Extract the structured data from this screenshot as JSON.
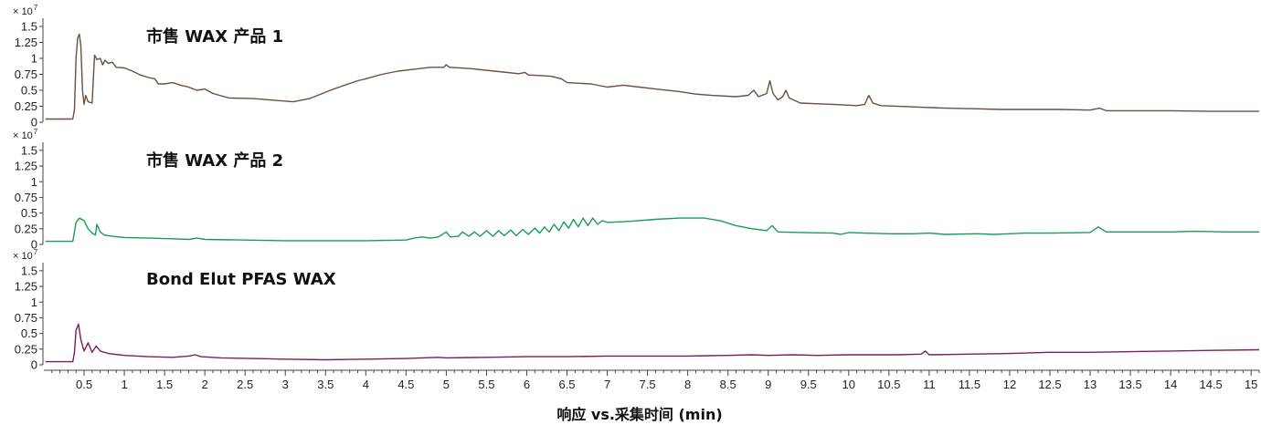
{
  "chart_data": {
    "type": "line",
    "xlabel": "响应 vs.采集时间 (min)",
    "xlim": [
      0,
      15.1
    ],
    "x_ticks": [
      "0.5",
      "1",
      "1.5",
      "2",
      "2.5",
      "3",
      "3.5",
      "4",
      "4.5",
      "5",
      "5.5",
      "6",
      "6.5",
      "7",
      "7.5",
      "8",
      "8.5",
      "9",
      "9.5",
      "10",
      "10.5",
      "11",
      "11.5",
      "12",
      "12.5",
      "13",
      "13.5",
      "14",
      "14.5",
      "15"
    ],
    "y_ticks": [
      "0",
      "0.25",
      "0.5",
      "0.75",
      "1",
      "1.25",
      "1.5"
    ],
    "y_multiplier": "× 10",
    "y_exponent": "7",
    "ylim": [
      0,
      1.6
    ],
    "panels": [
      {
        "title": "市售 WAX 产品 1",
        "color": "#6b4f3f",
        "points": [
          [
            0.02,
            0.05
          ],
          [
            0.36,
            0.05
          ],
          [
            0.38,
            0.2
          ],
          [
            0.4,
            1.0
          ],
          [
            0.42,
            1.32
          ],
          [
            0.44,
            1.38
          ],
          [
            0.46,
            1.2
          ],
          [
            0.48,
            0.5
          ],
          [
            0.5,
            0.28
          ],
          [
            0.52,
            0.42
          ],
          [
            0.55,
            0.32
          ],
          [
            0.6,
            0.3
          ],
          [
            0.63,
            1.05
          ],
          [
            0.66,
            0.98
          ],
          [
            0.7,
            1.0
          ],
          [
            0.73,
            0.9
          ],
          [
            0.76,
            0.97
          ],
          [
            0.8,
            0.92
          ],
          [
            0.85,
            0.94
          ],
          [
            0.9,
            0.86
          ],
          [
            1.0,
            0.85
          ],
          [
            1.1,
            0.8
          ],
          [
            1.2,
            0.74
          ],
          [
            1.3,
            0.7
          ],
          [
            1.38,
            0.68
          ],
          [
            1.42,
            0.6
          ],
          [
            1.5,
            0.6
          ],
          [
            1.6,
            0.62
          ],
          [
            1.7,
            0.58
          ],
          [
            1.8,
            0.55
          ],
          [
            1.9,
            0.5
          ],
          [
            2.0,
            0.52
          ],
          [
            2.1,
            0.45
          ],
          [
            2.3,
            0.38
          ],
          [
            2.6,
            0.37
          ],
          [
            2.9,
            0.34
          ],
          [
            3.1,
            0.32
          ],
          [
            3.3,
            0.37
          ],
          [
            3.6,
            0.52
          ],
          [
            3.9,
            0.65
          ],
          [
            4.0,
            0.68
          ],
          [
            4.2,
            0.75
          ],
          [
            4.4,
            0.8
          ],
          [
            4.6,
            0.83
          ],
          [
            4.8,
            0.86
          ],
          [
            4.97,
            0.86
          ],
          [
            5.0,
            0.9
          ],
          [
            5.04,
            0.86
          ],
          [
            5.3,
            0.84
          ],
          [
            5.6,
            0.8
          ],
          [
            5.9,
            0.76
          ],
          [
            5.98,
            0.78
          ],
          [
            6.02,
            0.74
          ],
          [
            6.3,
            0.72
          ],
          [
            6.43,
            0.68
          ],
          [
            6.5,
            0.62
          ],
          [
            6.8,
            0.6
          ],
          [
            7.0,
            0.55
          ],
          [
            7.2,
            0.58
          ],
          [
            7.4,
            0.55
          ],
          [
            7.6,
            0.52
          ],
          [
            7.9,
            0.48
          ],
          [
            8.1,
            0.44
          ],
          [
            8.3,
            0.42
          ],
          [
            8.6,
            0.4
          ],
          [
            8.75,
            0.42
          ],
          [
            8.82,
            0.5
          ],
          [
            8.88,
            0.4
          ],
          [
            8.98,
            0.45
          ],
          [
            9.02,
            0.65
          ],
          [
            9.06,
            0.45
          ],
          [
            9.12,
            0.35
          ],
          [
            9.18,
            0.4
          ],
          [
            9.22,
            0.5
          ],
          [
            9.26,
            0.38
          ],
          [
            9.4,
            0.3
          ],
          [
            9.8,
            0.28
          ],
          [
            10.1,
            0.26
          ],
          [
            10.2,
            0.28
          ],
          [
            10.25,
            0.42
          ],
          [
            10.3,
            0.3
          ],
          [
            10.4,
            0.26
          ],
          [
            10.8,
            0.24
          ],
          [
            11.2,
            0.22
          ],
          [
            11.6,
            0.21
          ],
          [
            11.9,
            0.2
          ],
          [
            12.2,
            0.2
          ],
          [
            12.6,
            0.2
          ],
          [
            13.0,
            0.19
          ],
          [
            13.12,
            0.22
          ],
          [
            13.2,
            0.18
          ],
          [
            13.6,
            0.18
          ],
          [
            14.0,
            0.18
          ],
          [
            14.5,
            0.17
          ],
          [
            15.1,
            0.17
          ]
        ]
      },
      {
        "title": "市售 WAX 产品 2",
        "color": "#1a9c57",
        "points": [
          [
            0.02,
            0.05
          ],
          [
            0.36,
            0.05
          ],
          [
            0.38,
            0.2
          ],
          [
            0.4,
            0.35
          ],
          [
            0.44,
            0.42
          ],
          [
            0.5,
            0.38
          ],
          [
            0.55,
            0.25
          ],
          [
            0.6,
            0.18
          ],
          [
            0.64,
            0.15
          ],
          [
            0.66,
            0.32
          ],
          [
            0.7,
            0.2
          ],
          [
            0.75,
            0.15
          ],
          [
            0.85,
            0.13
          ],
          [
            1.0,
            0.11
          ],
          [
            1.3,
            0.1
          ],
          [
            1.6,
            0.09
          ],
          [
            1.8,
            0.08
          ],
          [
            1.9,
            0.1
          ],
          [
            2.0,
            0.08
          ],
          [
            2.5,
            0.07
          ],
          [
            3.0,
            0.06
          ],
          [
            3.5,
            0.06
          ],
          [
            4.0,
            0.06
          ],
          [
            4.5,
            0.07
          ],
          [
            4.6,
            0.1
          ],
          [
            4.7,
            0.12
          ],
          [
            4.8,
            0.1
          ],
          [
            4.9,
            0.12
          ],
          [
            5.0,
            0.2
          ],
          [
            5.05,
            0.12
          ],
          [
            5.15,
            0.13
          ],
          [
            5.2,
            0.2
          ],
          [
            5.28,
            0.13
          ],
          [
            5.35,
            0.2
          ],
          [
            5.42,
            0.13
          ],
          [
            5.5,
            0.22
          ],
          [
            5.58,
            0.13
          ],
          [
            5.65,
            0.22
          ],
          [
            5.72,
            0.14
          ],
          [
            5.8,
            0.23
          ],
          [
            5.87,
            0.14
          ],
          [
            5.95,
            0.24
          ],
          [
            6.02,
            0.16
          ],
          [
            6.1,
            0.26
          ],
          [
            6.16,
            0.18
          ],
          [
            6.22,
            0.28
          ],
          [
            6.28,
            0.2
          ],
          [
            6.34,
            0.32
          ],
          [
            6.4,
            0.22
          ],
          [
            6.46,
            0.36
          ],
          [
            6.52,
            0.26
          ],
          [
            6.58,
            0.4
          ],
          [
            6.64,
            0.28
          ],
          [
            6.7,
            0.42
          ],
          [
            6.76,
            0.3
          ],
          [
            6.82,
            0.42
          ],
          [
            6.88,
            0.32
          ],
          [
            6.94,
            0.38
          ],
          [
            7.0,
            0.35
          ],
          [
            7.3,
            0.37
          ],
          [
            7.6,
            0.4
          ],
          [
            7.9,
            0.42
          ],
          [
            8.2,
            0.42
          ],
          [
            8.4,
            0.38
          ],
          [
            8.6,
            0.3
          ],
          [
            8.8,
            0.25
          ],
          [
            8.98,
            0.22
          ],
          [
            9.05,
            0.3
          ],
          [
            9.12,
            0.2
          ],
          [
            9.4,
            0.19
          ],
          [
            9.8,
            0.18
          ],
          [
            9.9,
            0.16
          ],
          [
            10.0,
            0.19
          ],
          [
            10.2,
            0.18
          ],
          [
            10.5,
            0.17
          ],
          [
            10.8,
            0.17
          ],
          [
            11.0,
            0.18
          ],
          [
            11.2,
            0.16
          ],
          [
            11.6,
            0.17
          ],
          [
            11.8,
            0.16
          ],
          [
            12.0,
            0.17
          ],
          [
            12.2,
            0.18
          ],
          [
            12.5,
            0.18
          ],
          [
            13.0,
            0.19
          ],
          [
            13.1,
            0.28
          ],
          [
            13.2,
            0.2
          ],
          [
            13.5,
            0.2
          ],
          [
            14.0,
            0.2
          ],
          [
            14.3,
            0.21
          ],
          [
            14.7,
            0.2
          ],
          [
            15.1,
            0.2
          ]
        ]
      },
      {
        "title": "Bond Elut PFAS WAX",
        "color": "#7a1f5c",
        "points": [
          [
            0.02,
            0.05
          ],
          [
            0.36,
            0.05
          ],
          [
            0.38,
            0.2
          ],
          [
            0.4,
            0.55
          ],
          [
            0.43,
            0.65
          ],
          [
            0.46,
            0.4
          ],
          [
            0.5,
            0.22
          ],
          [
            0.55,
            0.35
          ],
          [
            0.6,
            0.2
          ],
          [
            0.65,
            0.3
          ],
          [
            0.7,
            0.22
          ],
          [
            0.8,
            0.18
          ],
          [
            1.0,
            0.15
          ],
          [
            1.3,
            0.13
          ],
          [
            1.6,
            0.12
          ],
          [
            1.8,
            0.14
          ],
          [
            1.88,
            0.16
          ],
          [
            1.95,
            0.13
          ],
          [
            2.2,
            0.11
          ],
          [
            2.6,
            0.1
          ],
          [
            3.0,
            0.09
          ],
          [
            3.5,
            0.08
          ],
          [
            4.0,
            0.09
          ],
          [
            4.5,
            0.1
          ],
          [
            4.9,
            0.12
          ],
          [
            5.0,
            0.11
          ],
          [
            5.5,
            0.12
          ],
          [
            6.0,
            0.13
          ],
          [
            6.5,
            0.13
          ],
          [
            7.0,
            0.14
          ],
          [
            7.5,
            0.14
          ],
          [
            8.0,
            0.14
          ],
          [
            8.5,
            0.15
          ],
          [
            8.8,
            0.16
          ],
          [
            9.0,
            0.15
          ],
          [
            9.3,
            0.16
          ],
          [
            9.6,
            0.15
          ],
          [
            10.0,
            0.16
          ],
          [
            10.6,
            0.16
          ],
          [
            10.9,
            0.17
          ],
          [
            10.95,
            0.22
          ],
          [
            11.0,
            0.16
          ],
          [
            11.5,
            0.17
          ],
          [
            12.0,
            0.18
          ],
          [
            12.5,
            0.2
          ],
          [
            13.0,
            0.2
          ],
          [
            13.5,
            0.21
          ],
          [
            14.0,
            0.22
          ],
          [
            14.5,
            0.23
          ],
          [
            15.1,
            0.24
          ]
        ]
      }
    ]
  }
}
